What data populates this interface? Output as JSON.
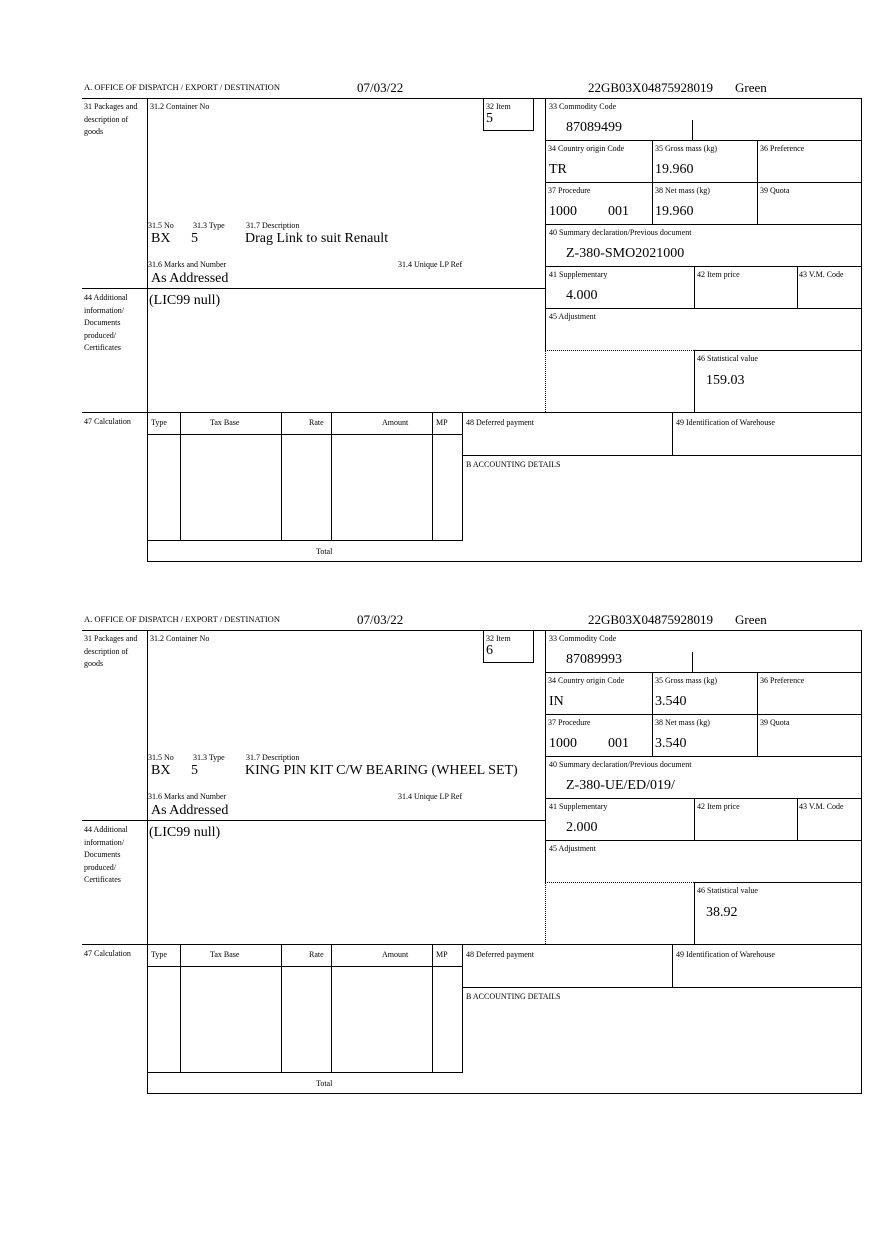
{
  "labels": {
    "office": "A. OFFICE OF DISPATCH / EXPORT / DESTINATION",
    "packages": "31 Packages and description of goods",
    "container": "31.2 Container No",
    "item": "32 Item",
    "no": "31.5 No",
    "type": "31.3 Type",
    "description": "31.7 Description",
    "marks": "31.6 Marks and Number",
    "unique_lp": "31.4 Unique LP Ref",
    "commodity": "33 Commodity Code",
    "country": "34 Country origin Code",
    "gross": "35 Gross mass (kg)",
    "preference": "36 Preference",
    "procedure": "37 Procedure",
    "net": "38 Net mass (kg)",
    "quota": "39 Quota",
    "summary": "40 Summary declaration/Previous document",
    "supplementary": "41 Supplementary",
    "item_price": "42 Item price",
    "vm_code": "43 V.M. Code",
    "additional": "44 Additional information/ Documents produced/ Certificates",
    "adjustment": "45 Adjustment",
    "statistical": "46 Statistical value",
    "calculation": "47 Calculation",
    "calc_type": "Type",
    "tax_base": "Tax Base",
    "rate": "Rate",
    "amount": "Amount",
    "mp": "MP",
    "deferred": "48 Deferred payment",
    "warehouse": "49 Identification of Warehouse",
    "accounting": "B ACCOUNTING DETAILS",
    "total": "Total"
  },
  "items": [
    {
      "date": "07/03/22",
      "reference": "22GB03X04875928019",
      "route": "Green",
      "item_no": "5",
      "pkg_kind": "BX",
      "pkg_count": "5",
      "description": "Drag Link to suit Renault",
      "marks": "As Addressed",
      "commodity_code": "87089499",
      "country_origin": "TR",
      "gross_mass": "19.960",
      "procedure": "1000",
      "procedure_add": "001",
      "net_mass": "19.960",
      "previous_document": "Z-380-SMO2021000",
      "supplementary": "4.000",
      "additional_info": "(LIC99 null)",
      "statistical_value": "159.03"
    },
    {
      "date": "07/03/22",
      "reference": "22GB03X04875928019",
      "route": "Green",
      "item_no": "6",
      "pkg_kind": "BX",
      "pkg_count": "5",
      "description": "KING PIN KIT C/W BEARING (WHEEL SET)",
      "marks": "As Addressed",
      "commodity_code": "87089993",
      "country_origin": "IN",
      "gross_mass": "3.540",
      "procedure": "1000",
      "procedure_add": "001",
      "net_mass": "3.540",
      "previous_document": "Z-380-UE/ED/019/",
      "supplementary": "2.000",
      "additional_info": "(LIC99 null)",
      "statistical_value": "38.92"
    }
  ]
}
